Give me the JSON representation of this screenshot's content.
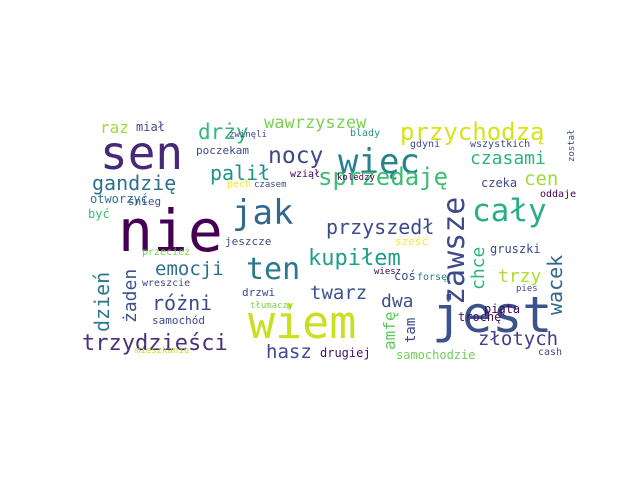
{
  "word_cloud": {
    "words": [
      {
        "text": "nie",
        "color": "#440154"
      },
      {
        "text": "sen",
        "color": "#482878"
      },
      {
        "text": "wiem",
        "color": "#c8e020"
      },
      {
        "text": "jest",
        "color": "#3b528b"
      },
      {
        "text": "więc",
        "color": "#26828e"
      },
      {
        "text": "cały",
        "color": "#29af7f"
      },
      {
        "text": "jak",
        "color": "#31688e"
      },
      {
        "text": "zawsze",
        "color": "#3e4a89"
      },
      {
        "text": "ten",
        "color": "#2a788e"
      },
      {
        "text": "przychodzą",
        "color": "#d8e219"
      },
      {
        "text": "sprzedaję",
        "color": "#3dbc74"
      },
      {
        "text": "nocy",
        "color": "#3f4788"
      },
      {
        "text": "kupiłem",
        "color": "#1f9e89"
      },
      {
        "text": "trzydzieści",
        "color": "#46317e"
      },
      {
        "text": "wacek",
        "color": "#31688e"
      },
      {
        "text": "przyszedł",
        "color": "#3e4a89"
      },
      {
        "text": "gandzię",
        "color": "#2c728e"
      },
      {
        "text": "dzień",
        "color": "#2a788e"
      },
      {
        "text": "różni",
        "color": "#3e4a89"
      },
      {
        "text": "emocji",
        "color": "#2d708e"
      },
      {
        "text": "drży",
        "color": "#35b779"
      },
      {
        "text": "palił",
        "color": "#21918c"
      },
      {
        "text": "wawrzyszew",
        "color": "#7ad151"
      },
      {
        "text": "złotych",
        "color": "#423f85"
      },
      {
        "text": "czasami",
        "color": "#2eb37c"
      },
      {
        "text": "twarz",
        "color": "#3b528b"
      },
      {
        "text": "hasz",
        "color": "#3e4a89"
      },
      {
        "text": "cen",
        "color": "#a0da39"
      },
      {
        "text": "raz",
        "color": "#a5db36"
      },
      {
        "text": "żaden",
        "color": "#3b528b"
      },
      {
        "text": "chce",
        "color": "#2fb47c"
      },
      {
        "text": "amfę",
        "color": "#5ec962"
      },
      {
        "text": "dwa",
        "color": "#3b528b"
      },
      {
        "text": "trzy",
        "color": "#addc30"
      },
      {
        "text": "tam",
        "color": "#3e4a89"
      },
      {
        "text": "drugiej",
        "color": "#471063"
      },
      {
        "text": "samochodzie",
        "color": "#6ece58"
      },
      {
        "text": "miał",
        "color": "#3e4a89"
      },
      {
        "text": "otworzyć",
        "color": "#2a788e"
      },
      {
        "text": "być",
        "color": "#3dbc74"
      },
      {
        "text": "gruszki",
        "color": "#3e4a89"
      },
      {
        "text": "czeka",
        "color": "#3e4a89"
      },
      {
        "text": "piąta",
        "color": "#440154"
      },
      {
        "text": "trochę",
        "color": "#471063"
      },
      {
        "text": "samochód",
        "color": "#3e4a89"
      },
      {
        "text": "drzwi",
        "color": "#3e4a89"
      },
      {
        "text": "jeszcze",
        "color": "#3e4a89"
      },
      {
        "text": "poczekam",
        "color": "#3e4a89"
      },
      {
        "text": "sześć",
        "color": "#fde725"
      },
      {
        "text": "wreszcie",
        "color": "#3e4a89"
      },
      {
        "text": "przecież",
        "color": "#7ad151"
      },
      {
        "text": "cash",
        "color": "#3e4a89"
      },
      {
        "text": "oddaje",
        "color": "#440154"
      },
      {
        "text": "śnieg",
        "color": "#3b528b"
      },
      {
        "text": "blady",
        "color": "#21918c"
      },
      {
        "text": "zwinęli",
        "color": "#3e4a89"
      },
      {
        "text": "czasem",
        "color": "#3e4a89"
      },
      {
        "text": "pech",
        "color": "#fde725"
      },
      {
        "text": "wziął",
        "color": "#440154"
      },
      {
        "text": "koledzy",
        "color": "#440154"
      },
      {
        "text": "gdyni",
        "color": "#3e4a89"
      },
      {
        "text": "wszystkich",
        "color": "#3e4a89"
      },
      {
        "text": "został",
        "color": "#3e4a89"
      },
      {
        "text": "wiesz",
        "color": "#440154"
      },
      {
        "text": "coś",
        "color": "#3e4a89"
      },
      {
        "text": "forsę",
        "color": "#2a788e"
      },
      {
        "text": "pies",
        "color": "#3e4a89"
      },
      {
        "text": "tłumaczy",
        "color": "#7ad151"
      },
      {
        "text": "mieszkaniu",
        "color": "#c8e020"
      }
    ]
  }
}
